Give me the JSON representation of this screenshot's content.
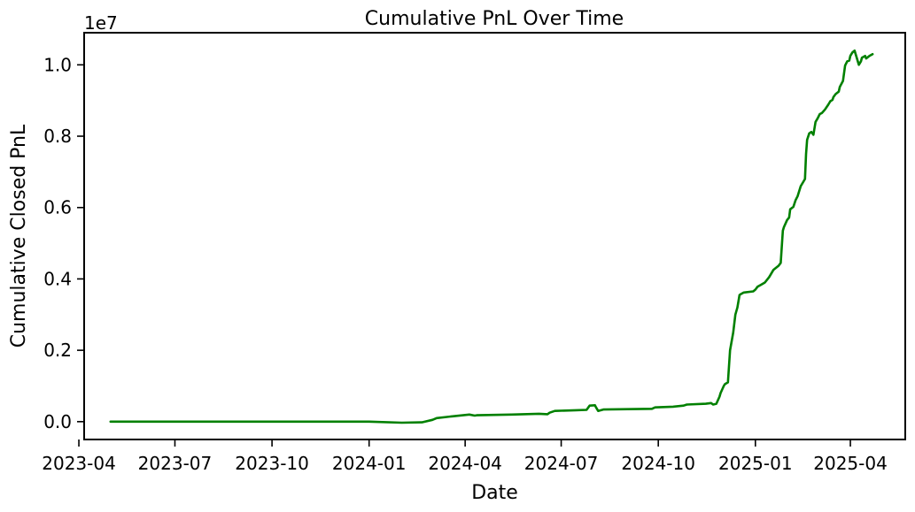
{
  "chart_data": {
    "type": "line",
    "title": "Cumulative PnL Over Time",
    "xlabel": "Date",
    "ylabel": "Cumulative Closed PnL",
    "y_offset_label": "1e7",
    "y_multiplier": 10000000,
    "xlim": [
      "2023-04-06",
      "2025-05-23"
    ],
    "ylim": [
      -0.05,
      1.09
    ],
    "grid": false,
    "x_ticks": [
      "2023-04",
      "2023-07",
      "2023-10",
      "2024-01",
      "2024-04",
      "2024-07",
      "2024-10",
      "2025-01",
      "2025-04"
    ],
    "y_ticks": [
      "0.0",
      "0.2",
      "0.4",
      "0.6",
      "0.8",
      "1.0"
    ],
    "line_color": "#008000",
    "series": [
      {
        "x": [
          "2023-05-01",
          "2023-08-01",
          "2023-11-01",
          "2024-01-01",
          "2024-02-01",
          "2024-02-20",
          "2024-03-01",
          "2024-03-05",
          "2024-03-20",
          "2024-04-05",
          "2024-04-10",
          "2024-04-12",
          "2024-05-15",
          "2024-06-10",
          "2024-06-18",
          "2024-06-20",
          "2024-06-25",
          "2024-07-15",
          "2024-07-25",
          "2024-07-28",
          "2024-08-02",
          "2024-08-03",
          "2024-08-05",
          "2024-08-10",
          "2024-09-25",
          "2024-09-28",
          "2024-10-15",
          "2024-10-25",
          "2024-10-28",
          "2024-11-15",
          "2024-11-20",
          "2024-11-22",
          "2024-11-25",
          "2024-11-28",
          "2024-11-29",
          "2024-12-02",
          "2024-12-03",
          "2024-12-06",
          "2024-12-08",
          "2024-12-11",
          "2024-12-13",
          "2024-12-15",
          "2024-12-17",
          "2024-12-18",
          "2024-12-21",
          "2024-12-30",
          "2025-01-01",
          "2025-01-03",
          "2025-01-06",
          "2025-01-10",
          "2025-01-14",
          "2025-01-15",
          "2025-01-18",
          "2025-01-23",
          "2025-01-25",
          "2025-01-27",
          "2025-01-28",
          "2025-01-31",
          "2025-02-02",
          "2025-02-03",
          "2025-02-06",
          "2025-02-08",
          "2025-02-10",
          "2025-02-13",
          "2025-02-15",
          "2025-02-17",
          "2025-02-18",
          "2025-02-19",
          "2025-02-21",
          "2025-02-23",
          "2025-02-25",
          "2025-02-27",
          "2025-03-01",
          "2025-03-03",
          "2025-03-05",
          "2025-03-08",
          "2025-03-11",
          "2025-03-13",
          "2025-03-15",
          "2025-03-16",
          "2025-03-18",
          "2025-03-21",
          "2025-03-22",
          "2025-03-25",
          "2025-03-27",
          "2025-03-29",
          "2025-03-31",
          "2025-04-01",
          "2025-04-03",
          "2025-04-05",
          "2025-04-06",
          "2025-04-09",
          "2025-04-11",
          "2025-04-12",
          "2025-04-15",
          "2025-04-16",
          "2025-04-19",
          "2025-04-22"
        ],
        "y": [
          0.0,
          0.0,
          0.0,
          0.0,
          -0.003,
          -0.002,
          0.005,
          0.01,
          0.015,
          0.02,
          0.017,
          0.018,
          0.02,
          0.022,
          0.021,
          0.025,
          0.03,
          0.032,
          0.033,
          0.045,
          0.046,
          0.04,
          0.03,
          0.034,
          0.036,
          0.04,
          0.042,
          0.045,
          0.048,
          0.05,
          0.052,
          0.048,
          0.05,
          0.07,
          0.08,
          0.1,
          0.105,
          0.11,
          0.2,
          0.25,
          0.3,
          0.32,
          0.355,
          0.357,
          0.362,
          0.365,
          0.37,
          0.378,
          0.383,
          0.39,
          0.405,
          0.41,
          0.425,
          0.437,
          0.445,
          0.535,
          0.545,
          0.565,
          0.572,
          0.595,
          0.602,
          0.62,
          0.632,
          0.66,
          0.67,
          0.68,
          0.75,
          0.79,
          0.808,
          0.812,
          0.804,
          0.84,
          0.85,
          0.862,
          0.865,
          0.875,
          0.888,
          0.898,
          0.902,
          0.91,
          0.918,
          0.925,
          0.938,
          0.955,
          0.998,
          1.01,
          1.012,
          1.025,
          1.035,
          1.04,
          1.03,
          1.0,
          1.01,
          1.02,
          1.025,
          1.018,
          1.025,
          1.03
        ]
      }
    ]
  }
}
